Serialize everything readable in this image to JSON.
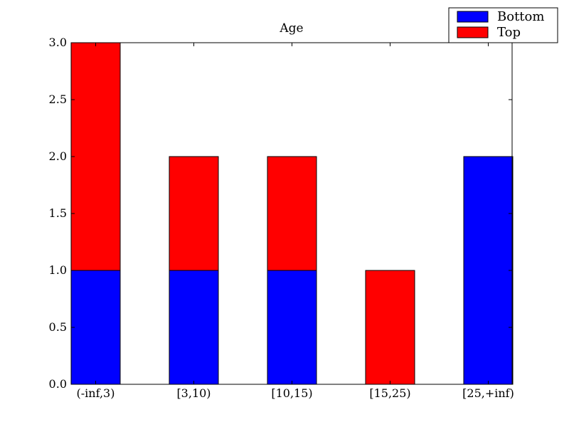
{
  "chart_data": {
    "type": "bar",
    "stacked": true,
    "title": "Age",
    "xlabel": "",
    "ylabel": "",
    "categories": [
      "(-inf,3)",
      "[3,10)",
      "[10,15)",
      "[15,25)",
      "[25,+inf)"
    ],
    "series": [
      {
        "name": "Bottom",
        "color": "#0000ff",
        "values": [
          1,
          1,
          1,
          0,
          2
        ]
      },
      {
        "name": "Top",
        "color": "#ff0000",
        "values": [
          2,
          1,
          1,
          1,
          0
        ]
      }
    ],
    "ylim": [
      0,
      3
    ],
    "yticks": [
      "0.0",
      "0.5",
      "1.0",
      "1.5",
      "2.0",
      "2.5",
      "3.0"
    ],
    "grid": false,
    "legend": "top-right"
  }
}
